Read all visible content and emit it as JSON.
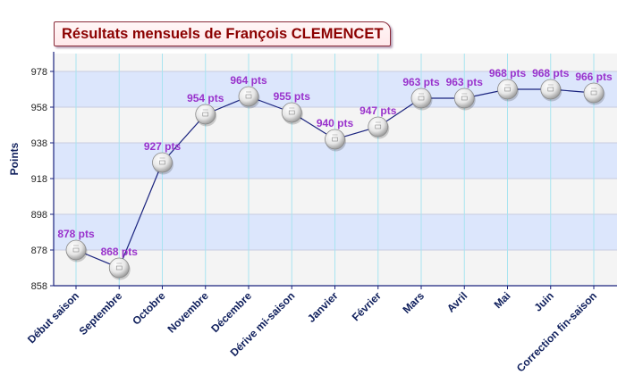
{
  "chart_data": {
    "type": "line",
    "title": "Résultats mensuels de François CLEMENCET",
    "ylabel": "Points",
    "xlabel": "",
    "categories": [
      "Début saison",
      "Septembre",
      "Octobre",
      "Novembre",
      "Décembre",
      "Dérive mi-saison",
      "Janvier",
      "Février",
      "Mars",
      "Avril",
      "Mai",
      "Juin",
      "Correction fin-saison"
    ],
    "series": [
      {
        "values": [
          878,
          868,
          927,
          954,
          964,
          955,
          940,
          947,
          963,
          963,
          968,
          968,
          966
        ],
        "labels": [
          "878 pts",
          "868 pts",
          "927 pts",
          "954 pts",
          "964 pts",
          "955 pts",
          "940 pts",
          "947 pts",
          "963 pts",
          "963 pts",
          "968 pts",
          "968 pts",
          "966 pts"
        ]
      }
    ],
    "ylim": [
      858,
      988
    ],
    "yticks": [
      858,
      878,
      898,
      918,
      938,
      958,
      978
    ],
    "ytick_labels": [
      "858",
      "878",
      "898",
      "918",
      "938",
      "958",
      "978"
    ],
    "grid": true,
    "marker": "ping-pong-ball-icon",
    "colors": {
      "line": "#1a237e",
      "value_label": "#9932cc",
      "title": "#8b0000",
      "axis": "#1a237e",
      "band_blue": "#dce6fc",
      "band_grey": "#f4f4f4",
      "vgrid": "#a8e4f0"
    }
  }
}
